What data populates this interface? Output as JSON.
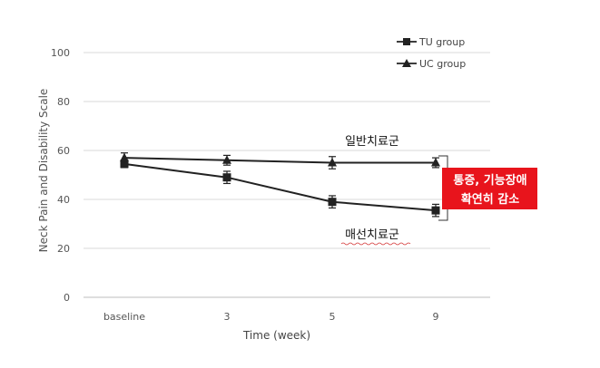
{
  "chart_data": {
    "type": "line",
    "title": "",
    "xlabel": "Time (week)",
    "ylabel": "Neck Pain and Disability Scale",
    "categories": [
      "baseline",
      "3",
      "5",
      "9"
    ],
    "ylim": [
      0,
      100
    ],
    "yticks": [
      0,
      20,
      40,
      60,
      80,
      100
    ],
    "grid": true,
    "legend_position": "top-right",
    "series": [
      {
        "name": "TU group",
        "marker": "square",
        "values": [
          54.5,
          49,
          39,
          35.5
        ],
        "errors": [
          1.5,
          2.5,
          2.5,
          2.5
        ]
      },
      {
        "name": "UC group",
        "marker": "triangle",
        "values": [
          57,
          56,
          55,
          55
        ],
        "errors": [
          2,
          2,
          2.5,
          2
        ]
      }
    ],
    "annotations": {
      "general_group": "일반치료군",
      "massage_group": "매선치료군",
      "highlight_line1": "통증, 기능장애",
      "highlight_line2": "확연히 감소"
    },
    "colors": {
      "series": "#222222",
      "grid": "#d9d9d9",
      "axis_text": "#555555",
      "highlight_bg": "#e8141c",
      "highlight_text": "#ffffff",
      "squiggle": "#d33333"
    }
  }
}
